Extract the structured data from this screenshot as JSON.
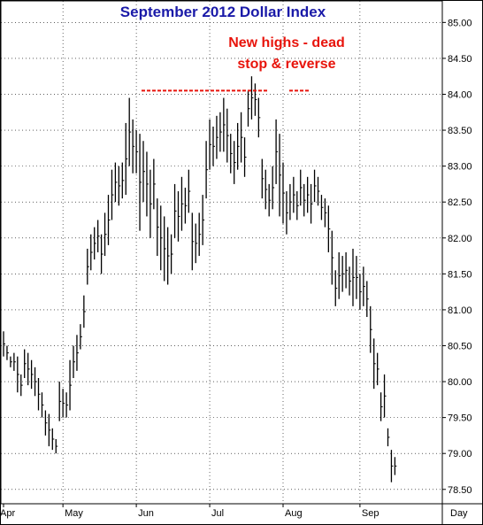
{
  "chart_data": {
    "type": "ohlc-bar",
    "title": "September 2012 Dollar Index",
    "title_color": "#1a1aa8",
    "annotation": {
      "lines": [
        "New highs - dead",
        "stop & reverse"
      ],
      "color": "#e8140c"
    },
    "resistance_level": 84.05,
    "resistance_color": "#e8140c",
    "ylim": [
      78.3,
      85.3
    ],
    "y_ticks": [
      "85.00",
      "84.50",
      "84.00",
      "83.50",
      "83.00",
      "82.50",
      "82.00",
      "81.50",
      "81.00",
      "80.50",
      "80.00",
      "79.50",
      "79.00",
      "78.50"
    ],
    "x_ticks": [
      {
        "label": "Apr",
        "index": 0
      },
      {
        "label": "May",
        "index": 17
      },
      {
        "label": "Jun",
        "index": 38
      },
      {
        "label": "Jul",
        "index": 59
      },
      {
        "label": "Aug",
        "index": 80
      },
      {
        "label": "Sep",
        "index": 102
      }
    ],
    "period_label": "Day",
    "grid": true,
    "bar_color": "#000000",
    "bars": [
      {
        "h": 80.7,
        "l": 80.35
      },
      {
        "h": 80.5,
        "l": 80.3
      },
      {
        "h": 80.35,
        "l": 80.2
      },
      {
        "h": 80.4,
        "l": 80.15
      },
      {
        "h": 80.35,
        "l": 79.85
      },
      {
        "h": 80.1,
        "l": 79.8
      },
      {
        "h": 80.45,
        "l": 80.05
      },
      {
        "h": 80.4,
        "l": 79.95
      },
      {
        "h": 80.3,
        "l": 79.9
      },
      {
        "h": 80.2,
        "l": 79.8
      },
      {
        "h": 80.05,
        "l": 79.6
      },
      {
        "h": 79.85,
        "l": 79.5
      },
      {
        "h": 79.6,
        "l": 79.25
      },
      {
        "h": 79.55,
        "l": 79.1
      },
      {
        "h": 79.35,
        "l": 79.05
      },
      {
        "h": 79.2,
        "l": 79.0
      },
      {
        "h": 80.0,
        "l": 79.45
      },
      {
        "h": 79.9,
        "l": 79.5
      },
      {
        "h": 79.85,
        "l": 79.5
      },
      {
        "h": 80.3,
        "l": 79.6
      },
      {
        "h": 80.5,
        "l": 80.05
      },
      {
        "h": 80.65,
        "l": 80.15
      },
      {
        "h": 80.8,
        "l": 80.45
      },
      {
        "h": 81.2,
        "l": 80.75
      },
      {
        "h": 81.85,
        "l": 81.35
      },
      {
        "h": 82.05,
        "l": 81.55
      },
      {
        "h": 82.15,
        "l": 81.7
      },
      {
        "h": 82.25,
        "l": 81.8
      },
      {
        "h": 82.05,
        "l": 81.5
      },
      {
        "h": 82.35,
        "l": 81.75
      },
      {
        "h": 82.6,
        "l": 81.9
      },
      {
        "h": 82.95,
        "l": 82.25
      },
      {
        "h": 83.05,
        "l": 82.5
      },
      {
        "h": 83.0,
        "l": 82.45
      },
      {
        "h": 83.05,
        "l": 82.55
      },
      {
        "h": 83.6,
        "l": 82.6
      },
      {
        "h": 83.95,
        "l": 83.0
      },
      {
        "h": 83.65,
        "l": 82.9
      },
      {
        "h": 83.5,
        "l": 82.9
      },
      {
        "h": 83.45,
        "l": 82.1
      },
      {
        "h": 83.35,
        "l": 82.5
      },
      {
        "h": 83.2,
        "l": 82.3
      },
      {
        "h": 82.95,
        "l": 82.0
      },
      {
        "h": 83.1,
        "l": 82.4
      },
      {
        "h": 82.55,
        "l": 81.75
      },
      {
        "h": 82.45,
        "l": 81.55
      },
      {
        "h": 82.3,
        "l": 81.4
      },
      {
        "h": 82.15,
        "l": 81.35
      },
      {
        "h": 82.05,
        "l": 81.5
      },
      {
        "h": 82.75,
        "l": 82.0
      },
      {
        "h": 82.65,
        "l": 81.95
      },
      {
        "h": 82.85,
        "l": 82.1
      },
      {
        "h": 82.7,
        "l": 82.2
      },
      {
        "h": 82.95,
        "l": 82.35
      },
      {
        "h": 82.35,
        "l": 81.55
      },
      {
        "h": 82.2,
        "l": 81.65
      },
      {
        "h": 82.35,
        "l": 81.75
      },
      {
        "h": 82.6,
        "l": 81.9
      },
      {
        "h": 83.35,
        "l": 82.55
      },
      {
        "h": 83.65,
        "l": 82.95
      },
      {
        "h": 83.55,
        "l": 83.0
      },
      {
        "h": 83.7,
        "l": 83.1
      },
      {
        "h": 83.75,
        "l": 83.2
      },
      {
        "h": 83.95,
        "l": 83.2
      },
      {
        "h": 83.8,
        "l": 83.05
      },
      {
        "h": 83.45,
        "l": 82.9
      },
      {
        "h": 83.35,
        "l": 82.75
      },
      {
        "h": 83.6,
        "l": 82.95
      },
      {
        "h": 83.75,
        "l": 83.05
      },
      {
        "h": 83.4,
        "l": 82.85
      },
      {
        "h": 84.05,
        "l": 83.55
      },
      {
        "h": 84.25,
        "l": 83.65
      },
      {
        "h": 84.15,
        "l": 83.7
      },
      {
        "h": 83.95,
        "l": 83.4
      },
      {
        "h": 83.1,
        "l": 82.55
      },
      {
        "h": 82.95,
        "l": 82.4
      },
      {
        "h": 82.75,
        "l": 82.3
      },
      {
        "h": 83.0,
        "l": 82.4
      },
      {
        "h": 83.65,
        "l": 82.75
      },
      {
        "h": 83.45,
        "l": 82.3
      },
      {
        "h": 83.05,
        "l": 82.2
      },
      {
        "h": 82.65,
        "l": 82.05
      },
      {
        "h": 82.75,
        "l": 82.25
      },
      {
        "h": 82.85,
        "l": 82.35
      },
      {
        "h": 82.65,
        "l": 82.25
      },
      {
        "h": 82.95,
        "l": 82.45
      },
      {
        "h": 82.75,
        "l": 82.3
      },
      {
        "h": 82.85,
        "l": 82.35
      },
      {
        "h": 82.75,
        "l": 82.2
      },
      {
        "h": 82.95,
        "l": 82.5
      },
      {
        "h": 82.85,
        "l": 82.45
      },
      {
        "h": 82.6,
        "l": 82.25
      },
      {
        "h": 82.55,
        "l": 82.15
      },
      {
        "h": 82.45,
        "l": 81.8
      },
      {
        "h": 82.1,
        "l": 81.35
      },
      {
        "h": 81.55,
        "l": 81.05
      },
      {
        "h": 81.8,
        "l": 81.15
      },
      {
        "h": 81.75,
        "l": 81.25
      },
      {
        "h": 81.8,
        "l": 81.3
      },
      {
        "h": 81.6,
        "l": 81.2
      },
      {
        "h": 81.85,
        "l": 81.05
      },
      {
        "h": 81.75,
        "l": 81.15
      },
      {
        "h": 81.5,
        "l": 81.0
      },
      {
        "h": 81.6,
        "l": 81.05
      },
      {
        "h": 81.4,
        "l": 80.9
      },
      {
        "h": 81.05,
        "l": 80.4
      },
      {
        "h": 80.6,
        "l": 79.9
      },
      {
        "h": 80.4,
        "l": 79.95
      },
      {
        "h": 79.85,
        "l": 79.45
      },
      {
        "h": 80.1,
        "l": 79.5
      },
      {
        "h": 79.35,
        "l": 79.1
      },
      {
        "h": 79.05,
        "l": 78.6
      },
      {
        "h": 78.95,
        "l": 78.7
      }
    ]
  }
}
